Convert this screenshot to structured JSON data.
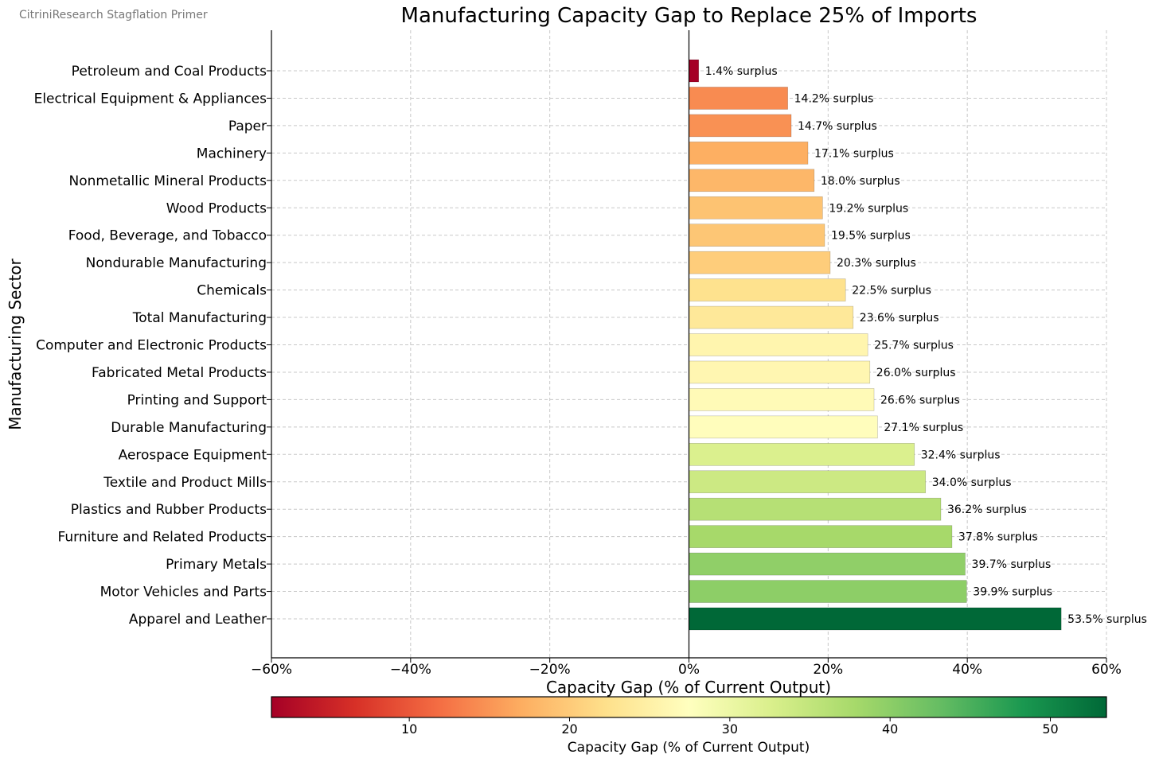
{
  "source_note": "CitriniResearch Stagflation Primer",
  "chart_data": {
    "type": "bar",
    "orientation": "horizontal",
    "title": "Manufacturing Capacity Gap to Replace 25% of Imports",
    "xlabel": "Capacity Gap (% of Current Output)",
    "ylabel": "Manufacturing Sector",
    "xlim": [
      -60,
      60
    ],
    "xticks": [
      -60,
      -40,
      -20,
      0,
      20,
      40,
      60
    ],
    "xtick_labels": [
      "−60%",
      "−40%",
      "−20%",
      "0%",
      "20%",
      "40%",
      "60%"
    ],
    "grid": true,
    "label_suffix": "% surplus",
    "categories": [
      "Petroleum and Coal Products",
      "Electrical Equipment & Appliances",
      "Paper",
      "Machinery",
      "Nonmetallic Mineral Products",
      "Wood Products",
      "Food, Beverage, and Tobacco",
      "Nondurable Manufacturing",
      "Chemicals",
      "Total Manufacturing",
      "Computer and Electronic Products",
      "Fabricated Metal Products",
      "Printing and Support",
      "Durable Manufacturing",
      "Aerospace Equipment",
      "Textile and Product Mills",
      "Plastics and Rubber Products",
      "Furniture and Related Products",
      "Primary Metals",
      "Motor Vehicles and Parts",
      "Apparel and Leather"
    ],
    "values": [
      1.4,
      14.2,
      14.7,
      17.1,
      18.0,
      19.2,
      19.5,
      20.3,
      22.5,
      23.6,
      25.7,
      26.0,
      26.6,
      27.1,
      32.4,
      34.0,
      36.2,
      37.8,
      39.7,
      39.9,
      53.5
    ],
    "colorbar": {
      "label": "Capacity Gap (% of Current Output)",
      "colormap": "RdYlGn",
      "range": [
        1.4,
        53.5
      ],
      "ticks": [
        10,
        20,
        30,
        40,
        50
      ],
      "tick_labels": [
        "10",
        "20",
        "30",
        "40",
        "50"
      ],
      "colors": [
        "#a50026",
        "#d73027",
        "#f46d43",
        "#fdae61",
        "#fee08b",
        "#ffffbf",
        "#d9ef8b",
        "#a6d96a",
        "#66bd63",
        "#1a9850",
        "#006837"
      ]
    }
  }
}
